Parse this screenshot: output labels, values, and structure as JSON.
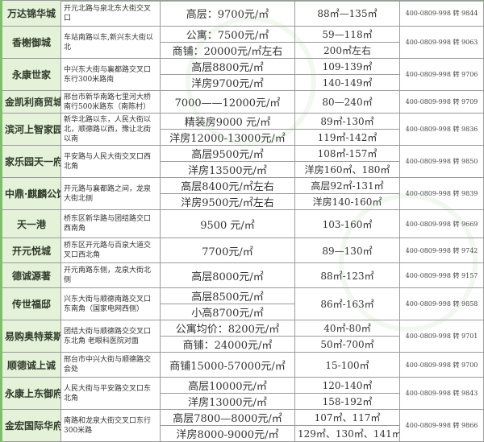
{
  "listings": [
    {
      "name": "万达锦华城",
      "address": "开元北路与泉北东大街交叉口",
      "prices": [
        "高层：9700元/㎡"
      ],
      "areas": [
        "88㎡—135㎡"
      ],
      "phone": "400-0809-998 转 9844"
    },
    {
      "name": "香榭御城",
      "address": "车站南路以东,新兴东大街以北",
      "prices": [
        "公寓：7500元/㎡",
        "商铺：20000元/㎡左右"
      ],
      "areas": [
        "59—118㎡",
        "200㎡左右"
      ],
      "phone": "400-0809-998 转 9063"
    },
    {
      "name": "永康世家",
      "address": "中兴东大街与襄都路交叉口东行300米路南",
      "prices": [
        "高层8800元/㎡",
        "洋房9700元/㎡"
      ],
      "areas": [
        "109-139㎡",
        "140-149㎡"
      ],
      "phone": "400-0809-998 转 9706"
    },
    {
      "name": "金凯利商贸城",
      "address": "邢台市新华南路七里河大桥南行500米路东（南陈村）",
      "prices": [
        "7000——12000元/㎡"
      ],
      "areas": [
        "80—240㎡"
      ],
      "phone": "400-0809-998 转 9709"
    },
    {
      "name": "滨河上智家园",
      "address": "新华北路以东，人民大街以北，顺德路以西，豫让北街以南",
      "prices": [
        "精装房9000 元/㎡",
        "洋房12000-13000元/㎡"
      ],
      "areas": [
        "89㎡-130㎡",
        "119㎡-142㎡"
      ],
      "phone": "400-0809-998 转 9836"
    },
    {
      "name": "家乐园天一府",
      "address": "平安路与人民大街交叉口西北角",
      "prices": [
        "高层9500元/㎡",
        "洋房13500元/㎡"
      ],
      "areas": [
        "108㎡-157㎡",
        "洋房160㎡、180㎡"
      ],
      "phone": "400-0809-998 转 9850"
    },
    {
      "name": "中鼎·麒麟公馆",
      "address": "开元路与襄都路之间，龙泉大街北侧",
      "prices": [
        "高层8400元/㎡左右",
        "洋房9500元/㎡左右"
      ],
      "areas": [
        "高层92㎡-131㎡",
        "洋房140-160㎡"
      ],
      "phone": "400-0809-998 转 9839"
    },
    {
      "name": "天一港",
      "address": "桥东区新华路与团结路交口西南角",
      "prices": [
        "9500 元/㎡"
      ],
      "areas": [
        "103-160㎡"
      ],
      "phone": "400-0809-998 转 9669"
    },
    {
      "name": "开元悦城",
      "address": "桥东区开元路与百泉大道交叉口西北角",
      "prices": [
        "7700元/㎡"
      ],
      "areas": [
        "89—130㎡"
      ],
      "phone": "400-0809-998 转 9742"
    },
    {
      "name": "德诚源著",
      "address": "开元南路东侧，龙泉大街北侧",
      "prices": [
        "高层8000元/㎡"
      ],
      "areas": [
        "88㎡-123㎡"
      ],
      "phone": "400-0809-998 转 9157"
    },
    {
      "name": "传世福邸",
      "address": "兴东大街与顺德南路交叉口东南角（国家电网西侧）",
      "prices": [
        "高层8500元/㎡",
        "小高8700元/㎡"
      ],
      "areas": [
        "86㎡-163㎡"
      ],
      "phone": "400-0809-998 转 9858"
    },
    {
      "name": "易购奥特莱斯",
      "address": "团结大街与顺德路交交叉口东北角 老眼科医院对面",
      "prices": [
        "公寓均价：8200元/㎡",
        "商铺：24000元/㎡"
      ],
      "areas": [
        "40㎡-80㎡",
        "50㎡-700㎡"
      ],
      "phone": "400-0809-998 转 9701"
    },
    {
      "name": "顺德诚上诚",
      "address": "邢台市中兴大街与顺德路交会处",
      "prices": [
        "商铺15000-57000元/㎡"
      ],
      "areas": [
        "15-100㎡"
      ],
      "phone": "400-0809-998 转 9700"
    },
    {
      "name": "永康上东御府",
      "address": "人民大街与平安路交叉口东北角",
      "prices": [
        "高层10000元/㎡",
        "洋房13000元/㎡"
      ],
      "areas": [
        "120-140㎡",
        "158-192㎡"
      ],
      "phone": "400-0809-998 转 9843"
    },
    {
      "name": "金宏国际华府",
      "address": "南路和龙泉大街交叉口东行300米路",
      "prices": [
        "高层7800—8000元/㎡",
        "洋房8000-9000元/㎡"
      ],
      "areas": [
        "107㎡、117㎡",
        "129㎡、130㎡、141㎡"
      ],
      "phone": "400-0809-998 转 9866"
    }
  ],
  "colors": {
    "name_bg": "#e4f2d9",
    "accent_green": "#7fbf6a",
    "border": "#9a9a9a"
  }
}
